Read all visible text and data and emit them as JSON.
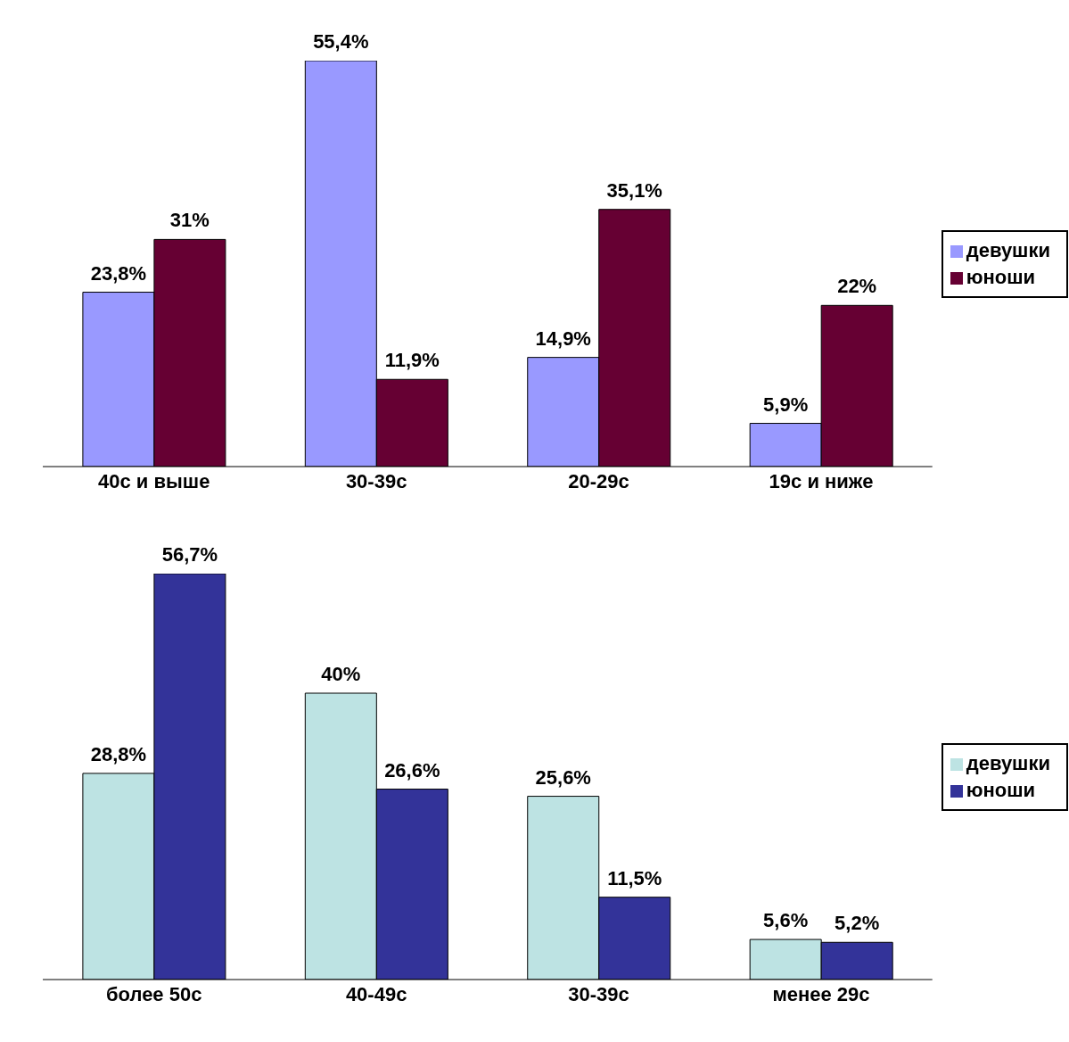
{
  "chart_data": [
    {
      "type": "bar",
      "categories": [
        "40с и выше",
        "30-39с",
        "20-29с",
        "19с и ниже"
      ],
      "legend": "right",
      "series": [
        {
          "name": "девушки",
          "color": "#9999ff",
          "values": [
            23.8,
            55.4,
            14.9,
            5.9
          ],
          "value_labels": [
            "23,8%",
            "55,4%",
            "14,9%",
            "5,9%"
          ]
        },
        {
          "name": "юноши",
          "color": "#660033",
          "values": [
            31,
            11.9,
            35.1,
            22
          ],
          "value_labels": [
            "31%",
            "11,9%",
            "35,1%",
            "22%"
          ]
        }
      ]
    },
    {
      "type": "bar",
      "categories": [
        "более 50с",
        "40-49с",
        "30-39с",
        "менее 29с"
      ],
      "legend": "right",
      "series": [
        {
          "name": "девушки",
          "color": "#bde3e3",
          "values": [
            28.8,
            40,
            25.6,
            5.6
          ],
          "value_labels": [
            "28,8%",
            "40%",
            "25,6%",
            "5,6%"
          ]
        },
        {
          "name": "юноши",
          "color": "#333399",
          "values": [
            56.7,
            26.6,
            11.5,
            5.2
          ],
          "value_labels": [
            "56,7%",
            "26,6%",
            "11,5%",
            "5,2%"
          ]
        }
      ]
    }
  ]
}
